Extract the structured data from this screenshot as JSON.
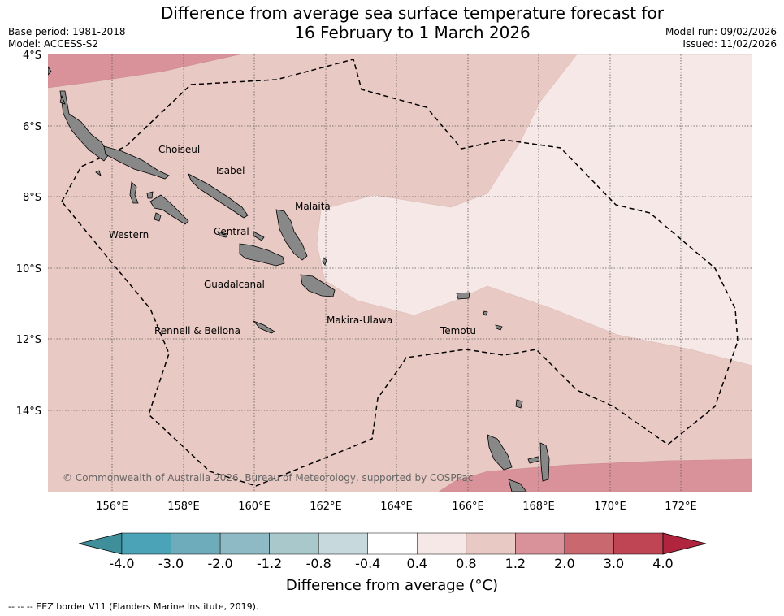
{
  "title_line1": "Difference from average sea surface temperature forecast for",
  "title_line2": "16 February to 1 March 2026",
  "base_period": "Base period: 1981-2018",
  "model": "Model: ACCESS-S2",
  "model_run": "Model run: 09/02/2026",
  "issued": "Issued: 11/02/2026",
  "lat_labels": [
    "4°S",
    "6°S",
    "8°S",
    "10°S",
    "12°S",
    "14°S"
  ],
  "lon_labels": [
    "156°E",
    "158°E",
    "160°E",
    "162°E",
    "164°E",
    "166°E",
    "168°E",
    "170°E",
    "172°E"
  ],
  "regions": [
    "Choiseul",
    "Isabel",
    "Malaita",
    "Western",
    "Central",
    "Guadalcanal",
    "Makira-Ulawa",
    "Rennell & Bellona",
    "Temotu"
  ],
  "copyright": "© Commonwealth of Australia 2026, Bureau of Meteorology, supported by COSPPac",
  "colorbar": {
    "colors": [
      "#3f8f9a",
      "#4aa3b6",
      "#6eacbc",
      "#8dbac4",
      "#a9c8cc",
      "#c7d9dc",
      "#ffffff",
      "#f5e8e6",
      "#e9c9c3",
      "#d9929a",
      "#c9686f",
      "#bf4555",
      "#b0243e"
    ],
    "tick_labels": [
      "-4.0",
      "-3.0",
      "-2.0",
      "-1.2",
      "-0.8",
      "-0.4",
      "0.4",
      "0.8",
      "1.2",
      "2.0",
      "3.0",
      "4.0"
    ],
    "title": "Difference from average (°C)"
  },
  "footnote": "--  --  -- EEZ border V11 (Flanders Marine Institute, 2019)."
}
